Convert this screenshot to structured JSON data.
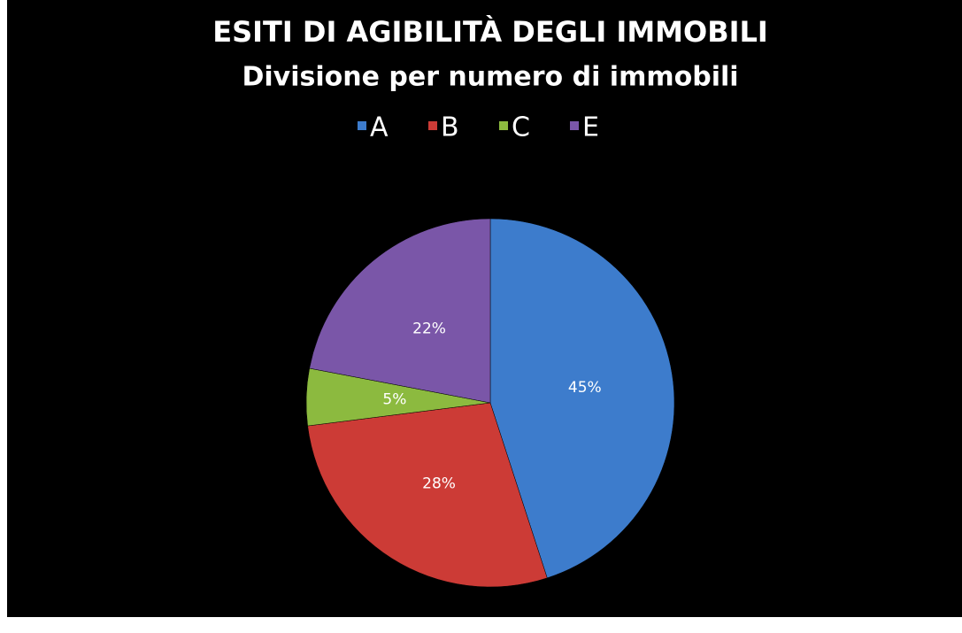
{
  "chart_data": {
    "type": "pie",
    "title": "ESITI DI AGIBILITÀ DEGLI IMMOBILI",
    "subtitle": "Divisione per numero di immobili",
    "categories": [
      "A",
      "B",
      "C",
      "E"
    ],
    "values": [
      45,
      28,
      5,
      22
    ],
    "value_labels": [
      "45%",
      "28%",
      "5%",
      "22%"
    ],
    "colors": [
      "#3d7ccc",
      "#cc3b36",
      "#8cba3f",
      "#7a56a8"
    ],
    "legend": "top"
  }
}
